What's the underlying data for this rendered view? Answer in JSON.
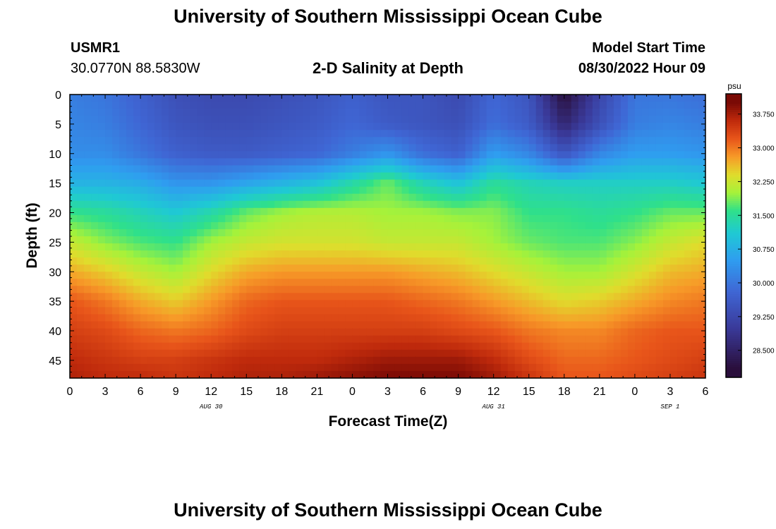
{
  "header": {
    "title": "University of Southern Mississippi Ocean Cube",
    "station_id": "USMR1",
    "coordinates": "30.0770N  88.5830W",
    "subtitle": "2-D Salinity at Depth",
    "model_start_label": "Model Start Time",
    "model_start_value": "08/30/2022 Hour 09"
  },
  "footer": {
    "title": "University of Southern Mississippi Ocean Cube"
  },
  "chart_data": {
    "type": "heatmap",
    "title": "2-D Salinity at Depth",
    "xlabel": "Forecast Time(Z)",
    "ylabel": "Depth (ft)",
    "x_tick_labels": [
      "0",
      "3",
      "6",
      "9",
      "12",
      "15",
      "18",
      "21",
      "0",
      "3",
      "6",
      "9",
      "12",
      "15",
      "18",
      "21",
      "0",
      "3",
      "6"
    ],
    "date_labels": [
      {
        "text": "AUG 30",
        "at_hour": 12
      },
      {
        "text": "AUG 31",
        "at_hour": 36
      },
      {
        "text": "SEP 1",
        "at_hour": 51
      }
    ],
    "xlim_hours": [
      0,
      54
    ],
    "y_ticks": [
      0,
      5,
      10,
      15,
      20,
      25,
      30,
      35,
      40,
      45
    ],
    "ylim": [
      0,
      48
    ],
    "y_inverted": true,
    "colorbar": {
      "unit": "psu",
      "ticks": [
        33.75,
        33.0,
        32.25,
        31.5,
        30.75,
        30.0,
        29.25,
        28.5
      ],
      "tick_labels": [
        "33.750",
        "33.000",
        "32.250",
        "31.500",
        "30.750",
        "30.000",
        "29.250",
        "28.500"
      ],
      "range": [
        27.9,
        34.2
      ]
    },
    "grid": false,
    "time_hours": [
      0,
      3,
      6,
      9,
      12,
      15,
      18,
      21,
      24,
      27,
      30,
      33,
      36,
      39,
      42,
      45,
      48,
      51,
      54
    ],
    "depths_ft": [
      0,
      5,
      10,
      15,
      20,
      25,
      30,
      35,
      40,
      45,
      48
    ],
    "salinity_psu": [
      [
        30.1,
        30.0,
        29.7,
        29.4,
        29.3,
        29.3,
        29.4,
        29.5,
        29.7,
        29.5,
        29.5,
        29.3,
        29.8,
        29.5,
        28.1,
        29.2,
        30.0,
        30.0,
        29.9
      ],
      [
        30.2,
        30.1,
        29.8,
        29.5,
        29.4,
        29.4,
        29.5,
        29.6,
        29.8,
        29.6,
        29.5,
        29.4,
        29.9,
        29.6,
        28.6,
        29.4,
        30.1,
        30.2,
        30.1
      ],
      [
        30.3,
        30.3,
        30.0,
        29.7,
        29.6,
        29.6,
        29.7,
        29.8,
        30.1,
        30.4,
        29.9,
        29.7,
        30.5,
        30.2,
        29.5,
        30.2,
        30.5,
        30.5,
        30.4
      ],
      [
        30.8,
        30.8,
        30.7,
        30.4,
        30.4,
        30.6,
        30.8,
        31.0,
        31.4,
        31.8,
        31.3,
        31.0,
        31.5,
        31.3,
        31.2,
        31.2,
        31.2,
        31.2,
        31.1
      ],
      [
        31.6,
        31.5,
        31.3,
        31.1,
        31.4,
        31.8,
        32.0,
        32.1,
        32.1,
        32.0,
        32.0,
        31.9,
        31.9,
        31.6,
        31.6,
        31.5,
        31.6,
        31.8,
        31.8
      ],
      [
        32.2,
        31.9,
        31.7,
        31.6,
        32.0,
        32.2,
        32.3,
        32.3,
        32.3,
        32.2,
        32.2,
        32.2,
        32.0,
        31.8,
        31.7,
        31.7,
        31.9,
        32.2,
        32.4
      ],
      [
        32.7,
        32.5,
        32.2,
        32.0,
        32.4,
        32.7,
        32.8,
        32.8,
        32.8,
        32.8,
        32.7,
        32.6,
        32.4,
        32.2,
        32.0,
        32.0,
        32.3,
        32.6,
        32.7
      ],
      [
        33.2,
        33.0,
        32.7,
        32.5,
        32.8,
        33.1,
        33.2,
        33.2,
        33.2,
        33.2,
        33.1,
        33.0,
        32.8,
        32.6,
        32.4,
        32.5,
        32.7,
        32.9,
        33.0
      ],
      [
        33.4,
        33.3,
        33.1,
        33.0,
        33.1,
        33.3,
        33.4,
        33.4,
        33.4,
        33.4,
        33.4,
        33.3,
        33.2,
        33.0,
        32.9,
        32.9,
        33.1,
        33.2,
        33.2
      ],
      [
        33.6,
        33.5,
        33.4,
        33.4,
        33.5,
        33.6,
        33.6,
        33.6,
        33.7,
        33.8,
        33.8,
        33.8,
        33.6,
        33.3,
        33.1,
        33.1,
        33.2,
        33.3,
        33.4
      ],
      [
        33.7,
        33.6,
        33.6,
        33.5,
        33.6,
        33.7,
        33.7,
        33.8,
        33.9,
        34.0,
        34.0,
        34.0,
        33.8,
        33.5,
        33.2,
        33.2,
        33.3,
        33.4,
        33.5
      ]
    ],
    "color_stops": [
      {
        "value": 28.1,
        "color": "#2a0f3c"
      },
      {
        "value": 29.0,
        "color": "#3a3a9a"
      },
      {
        "value": 29.8,
        "color": "#3f66d4"
      },
      {
        "value": 30.5,
        "color": "#2f9df0"
      },
      {
        "value": 31.1,
        "color": "#1fc9d4"
      },
      {
        "value": 31.6,
        "color": "#2fe08a"
      },
      {
        "value": 32.0,
        "color": "#a6f23a"
      },
      {
        "value": 32.4,
        "color": "#e0dc2c"
      },
      {
        "value": 32.8,
        "color": "#f79a28"
      },
      {
        "value": 33.2,
        "color": "#e8551a"
      },
      {
        "value": 33.6,
        "color": "#bf2a0c"
      },
      {
        "value": 34.0,
        "color": "#7a0a05"
      }
    ],
    "text_color": "#000000"
  }
}
